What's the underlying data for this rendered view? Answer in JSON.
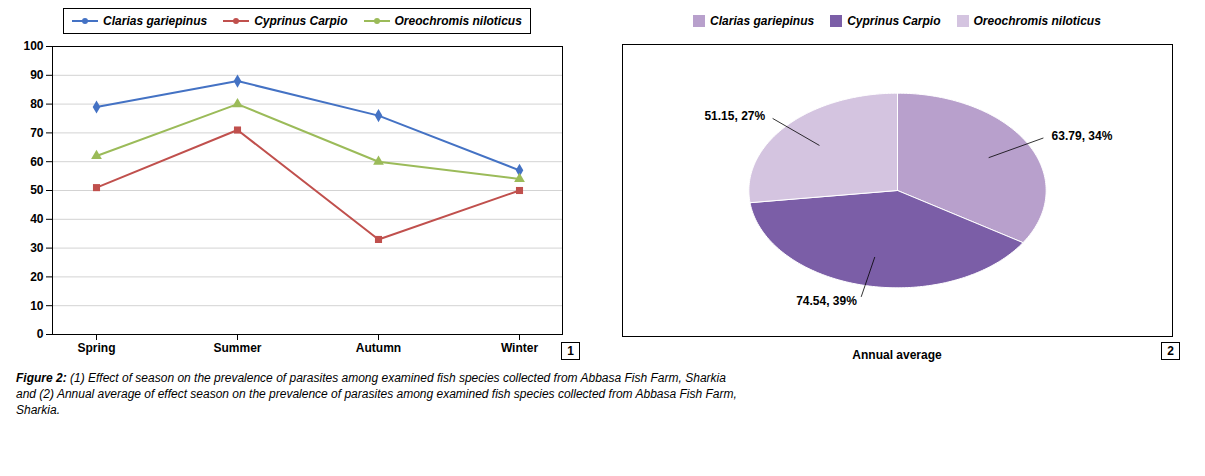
{
  "chart_data": [
    {
      "type": "line",
      "categories": [
        "Spring",
        "Summer",
        "Autumn",
        "Winter"
      ],
      "series": [
        {
          "name": "Clarias gariepinus",
          "color": "#4472C4",
          "marker": "diamond",
          "values": [
            79,
            88,
            76,
            57
          ]
        },
        {
          "name": "Cyprinus Carpio",
          "color": "#C0504D",
          "marker": "square",
          "values": [
            51,
            71,
            33,
            50
          ]
        },
        {
          "name": "Oreochromis niloticus",
          "color": "#9BBB59",
          "marker": "triangle",
          "values": [
            62,
            80,
            60,
            54
          ]
        }
      ],
      "ylim": [
        0,
        100
      ],
      "yticks": [
        0,
        10,
        20,
        30,
        40,
        50,
        60,
        70,
        80,
        90,
        100
      ],
      "grid": true,
      "legend": "top",
      "annotations": [
        {
          "text": "1"
        }
      ]
    },
    {
      "type": "pie",
      "categories": [
        "Clarias gariepinus",
        "Cyprinus Carpio",
        "Oreochromis niloticus"
      ],
      "values": [
        34,
        39,
        27
      ],
      "value_labels": [
        "63.79, 34%",
        "74.54, 39%",
        "51.15, 27%"
      ],
      "colors": [
        "#B8A0CC",
        "#7B5EA7",
        "#D4C4E0"
      ],
      "xlabel": "Annual average",
      "data_labels": true,
      "legend": "top",
      "annotations": [
        {
          "text": "2"
        }
      ]
    }
  ],
  "caption": [
    "Figure 2:",
    " (1) Effect of season on the prevalence of parasites among examined fish species collected from Abbasa Fish Farm, Sharkia\nand (2) Annual average of effect season on the prevalence of parasites among examined fish species collected from Abbasa Fish Farm,\nSharkia."
  ]
}
